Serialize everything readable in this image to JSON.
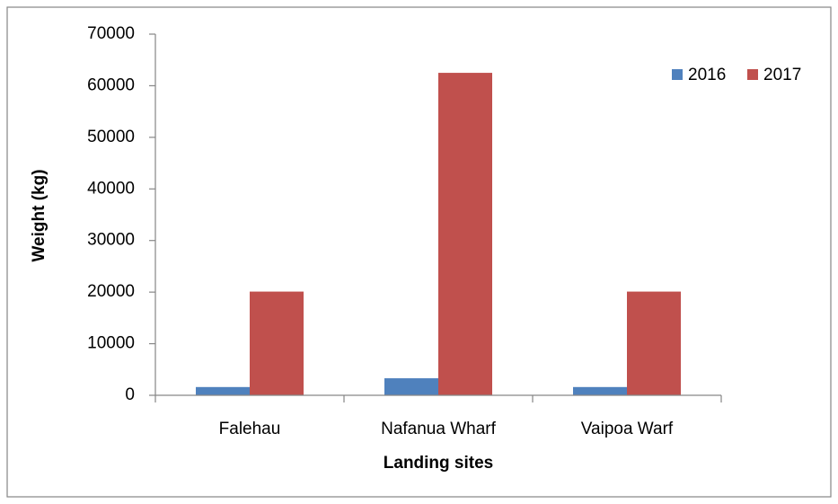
{
  "chart_data": {
    "type": "bar",
    "xlabel": "Landing sites",
    "ylabel": "Weight (kg)",
    "categories": [
      "Falehau",
      "Nafanua Wharf",
      "Vaipoa Warf"
    ],
    "series": [
      {
        "name": "2016",
        "color": "#4f81bd",
        "values": [
          1600,
          3300,
          1600
        ]
      },
      {
        "name": "2017",
        "color": "#c0504d",
        "values": [
          20100,
          62500,
          20100
        ]
      }
    ],
    "ylim": [
      0,
      70000
    ],
    "yticks": [
      0,
      10000,
      20000,
      30000,
      40000,
      50000,
      60000,
      70000
    ],
    "grid": false,
    "legend": "top-right"
  }
}
